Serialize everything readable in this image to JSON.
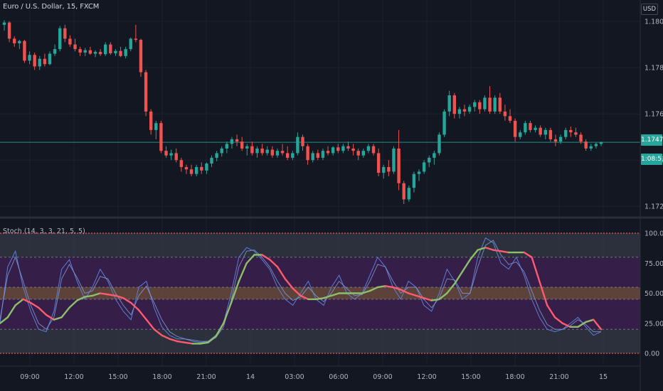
{
  "header": {
    "symbol": "Euro / U.S. Dollar, 15, FXCM",
    "currency": "USD"
  },
  "price_tag": {
    "price": "1.17477",
    "countdown": "1:08:51"
  },
  "indicator": {
    "label": "Stoch (14, 3, 3, 21, 5, 5)"
  },
  "colors": {
    "background": "#131722",
    "up": "#26a69a",
    "down": "#ef5350",
    "pane_zone": "#363a45",
    "pane_mid": "#3a1f4c",
    "pane_band": "#6b4a3e",
    "stoch_fast_k": "#5b7fd8",
    "stoch_fast_d": "#7f96d0",
    "slow_rising": "#8bbf6a",
    "slow_falling": "#ff5a6e",
    "bound_line": "#ef5350"
  },
  "chart_data": [
    {
      "type": "candlestick",
      "title": "Euro / U.S. Dollar, 15, FXCM",
      "y_ticks": [
        "1.18000",
        "1.17800",
        "1.17600",
        "1.17400",
        "1.17200"
      ],
      "x_ticks": [
        "09:00",
        "12:00",
        "15:00",
        "18:00",
        "21:00",
        "14",
        "03:00",
        "06:00",
        "09:00",
        "12:00",
        "15:00",
        "18:00",
        "21:00",
        "15"
      ],
      "ylim": [
        1.1717,
        1.1808
      ],
      "last_price": 1.17477,
      "grid": true,
      "ohlc": [
        [
          1.17985,
          1.18005,
          1.1796,
          1.17995
        ],
        [
          1.17995,
          1.18,
          1.1791,
          1.17925
        ],
        [
          1.17925,
          1.17935,
          1.1789,
          1.17905
        ],
        [
          1.17905,
          1.1792,
          1.1788,
          1.17915
        ],
        [
          1.17915,
          1.1792,
          1.1782,
          1.1783
        ],
        [
          1.1783,
          1.1787,
          1.17815,
          1.17855
        ],
        [
          1.17855,
          1.17865,
          1.1779,
          1.17805
        ],
        [
          1.17805,
          1.1785,
          1.1779,
          1.17838
        ],
        [
          1.17838,
          1.1786,
          1.17805,
          1.17815
        ],
        [
          1.17815,
          1.1787,
          1.1781,
          1.1786
        ],
        [
          1.1786,
          1.179,
          1.1785,
          1.1788
        ],
        [
          1.1788,
          1.1798,
          1.1787,
          1.1797
        ],
        [
          1.1797,
          1.17985,
          1.1791,
          1.17925
        ],
        [
          1.17925,
          1.1794,
          1.1789,
          1.179
        ],
        [
          1.179,
          1.17925,
          1.1787,
          1.1788
        ],
        [
          1.1788,
          1.1789,
          1.1785,
          1.17865
        ],
        [
          1.17865,
          1.17885,
          1.1785,
          1.17875
        ],
        [
          1.17875,
          1.1789,
          1.17855,
          1.1786
        ],
        [
          1.1786,
          1.17875,
          1.17845,
          1.17868
        ],
        [
          1.17868,
          1.1788,
          1.1785,
          1.17858
        ],
        [
          1.17858,
          1.1791,
          1.1785,
          1.179
        ],
        [
          1.179,
          1.1791,
          1.17855,
          1.17862
        ],
        [
          1.17862,
          1.1788,
          1.1785,
          1.17872
        ],
        [
          1.17872,
          1.1789,
          1.17845,
          1.1785
        ],
        [
          1.1785,
          1.1789,
          1.1784,
          1.1788
        ],
        [
          1.1788,
          1.1793,
          1.1787,
          1.17925
        ],
        [
          1.17925,
          1.17985,
          1.1791,
          1.1792
        ],
        [
          1.1792,
          1.17925,
          1.1776,
          1.1778
        ],
        [
          1.1778,
          1.1779,
          1.1759,
          1.1761
        ],
        [
          1.1761,
          1.1762,
          1.1751,
          1.1753
        ],
        [
          1.1753,
          1.1757,
          1.1749,
          1.1756
        ],
        [
          1.1756,
          1.1757,
          1.1743,
          1.1744
        ],
        [
          1.1744,
          1.1746,
          1.1741,
          1.1742
        ],
        [
          1.1742,
          1.17445,
          1.174,
          1.1743
        ],
        [
          1.1743,
          1.1745,
          1.1739,
          1.174
        ],
        [
          1.174,
          1.1741,
          1.1735,
          1.1737
        ],
        [
          1.1737,
          1.1738,
          1.1734,
          1.1736
        ],
        [
          1.1736,
          1.1738,
          1.1733,
          1.1734
        ],
        [
          1.1734,
          1.1738,
          1.1733,
          1.1737
        ],
        [
          1.1737,
          1.1739,
          1.1734,
          1.17355
        ],
        [
          1.17355,
          1.1739,
          1.1734,
          1.17385
        ],
        [
          1.17385,
          1.1742,
          1.1737,
          1.1741
        ],
        [
          1.1741,
          1.1744,
          1.17395,
          1.1743
        ],
        [
          1.1743,
          1.1746,
          1.17415,
          1.1745
        ],
        [
          1.1745,
          1.1748,
          1.1743,
          1.1747
        ],
        [
          1.1747,
          1.175,
          1.1745,
          1.1749
        ],
        [
          1.1749,
          1.1751,
          1.1746,
          1.1748
        ],
        [
          1.1748,
          1.175,
          1.1744,
          1.1745
        ],
        [
          1.1745,
          1.1747,
          1.1742,
          1.1746
        ],
        [
          1.1746,
          1.1748,
          1.1742,
          1.1743
        ],
        [
          1.1743,
          1.1746,
          1.1741,
          1.1745
        ],
        [
          1.1745,
          1.1747,
          1.1742,
          1.1743
        ],
        [
          1.1743,
          1.1746,
          1.1742,
          1.17445
        ],
        [
          1.17445,
          1.1746,
          1.1741,
          1.1742
        ],
        [
          1.1742,
          1.1745,
          1.1741,
          1.1744
        ],
        [
          1.1744,
          1.1747,
          1.1742,
          1.1743
        ],
        [
          1.1743,
          1.1746,
          1.174,
          1.1741
        ],
        [
          1.1741,
          1.1744,
          1.174,
          1.1743
        ],
        [
          1.1743,
          1.1752,
          1.1742,
          1.175
        ],
        [
          1.175,
          1.1751,
          1.1744,
          1.1746
        ],
        [
          1.1746,
          1.1747,
          1.1738,
          1.174
        ],
        [
          1.174,
          1.1744,
          1.1739,
          1.1743
        ],
        [
          1.1743,
          1.17445,
          1.174,
          1.1741
        ],
        [
          1.1741,
          1.1745,
          1.174,
          1.1744
        ],
        [
          1.1744,
          1.1746,
          1.1742,
          1.1743
        ],
        [
          1.1743,
          1.1746,
          1.1742,
          1.17455
        ],
        [
          1.17455,
          1.1747,
          1.1743,
          1.1744
        ],
        [
          1.1744,
          1.1747,
          1.1743,
          1.1746
        ],
        [
          1.1746,
          1.1748,
          1.1744,
          1.1745
        ],
        [
          1.1745,
          1.1747,
          1.1742,
          1.1744
        ],
        [
          1.1744,
          1.1745,
          1.174,
          1.1742
        ],
        [
          1.1742,
          1.1745,
          1.1741,
          1.1744
        ],
        [
          1.1744,
          1.1747,
          1.1743,
          1.1746
        ],
        [
          1.1746,
          1.1747,
          1.1742,
          1.1743
        ],
        [
          1.1743,
          1.1745,
          1.1733,
          1.17345
        ],
        [
          1.17345,
          1.1738,
          1.1732,
          1.1737
        ],
        [
          1.1737,
          1.174,
          1.1733,
          1.1735
        ],
        [
          1.1735,
          1.1746,
          1.1734,
          1.1745
        ],
        [
          1.1745,
          1.1753,
          1.1727,
          1.173
        ],
        [
          1.173,
          1.1731,
          1.1721,
          1.1723
        ],
        [
          1.1723,
          1.1729,
          1.1722,
          1.1728
        ],
        [
          1.1728,
          1.1735,
          1.1726,
          1.1734
        ],
        [
          1.1734,
          1.1736,
          1.1731,
          1.1735
        ],
        [
          1.1735,
          1.174,
          1.1734,
          1.1739
        ],
        [
          1.1739,
          1.1742,
          1.1737,
          1.1741
        ],
        [
          1.1741,
          1.1744,
          1.1738,
          1.1743
        ],
        [
          1.1743,
          1.1752,
          1.1742,
          1.1751
        ],
        [
          1.1751,
          1.1762,
          1.175,
          1.1761
        ],
        [
          1.1761,
          1.177,
          1.1759,
          1.1768
        ],
        [
          1.1768,
          1.1769,
          1.1758,
          1.176
        ],
        [
          1.176,
          1.1763,
          1.1758,
          1.1762
        ],
        [
          1.1762,
          1.1764,
          1.1759,
          1.1761
        ],
        [
          1.1761,
          1.1764,
          1.176,
          1.1763
        ],
        [
          1.1763,
          1.1766,
          1.1761,
          1.1765
        ],
        [
          1.1765,
          1.1766,
          1.176,
          1.1762
        ],
        [
          1.1762,
          1.1768,
          1.1761,
          1.1767
        ],
        [
          1.1767,
          1.1772,
          1.176,
          1.1761
        ],
        [
          1.1761,
          1.1768,
          1.176,
          1.1767
        ],
        [
          1.1767,
          1.1769,
          1.176,
          1.1761
        ],
        [
          1.1761,
          1.1764,
          1.1757,
          1.1759
        ],
        [
          1.1759,
          1.1762,
          1.1756,
          1.1757
        ],
        [
          1.1757,
          1.1758,
          1.1748,
          1.175
        ],
        [
          1.175,
          1.1753,
          1.1749,
          1.1752
        ],
        [
          1.1752,
          1.1757,
          1.1751,
          1.1756
        ],
        [
          1.1756,
          1.1757,
          1.1752,
          1.1753
        ],
        [
          1.1753,
          1.1755,
          1.1752,
          1.1754
        ],
        [
          1.1754,
          1.1755,
          1.175,
          1.1751
        ],
        [
          1.1751,
          1.1754,
          1.1749,
          1.1753
        ],
        [
          1.1753,
          1.1754,
          1.1748,
          1.1749
        ],
        [
          1.1749,
          1.1751,
          1.1746,
          1.1748
        ],
        [
          1.1748,
          1.1751,
          1.1747,
          1.175
        ],
        [
          1.175,
          1.1754,
          1.1749,
          1.1753
        ],
        [
          1.1753,
          1.17545,
          1.175,
          1.1752
        ],
        [
          1.1752,
          1.1754,
          1.175,
          1.1751
        ],
        [
          1.1751,
          1.1752,
          1.1747,
          1.1748
        ],
        [
          1.1748,
          1.1749,
          1.1744,
          1.1745
        ],
        [
          1.1745,
          1.1747,
          1.1744,
          1.1746
        ],
        [
          1.1746,
          1.17475,
          1.1745,
          1.1747
        ],
        [
          1.1747,
          1.1748,
          1.1746,
          1.17477
        ]
      ]
    },
    {
      "type": "line",
      "title": "Stoch (14, 3, 3, 21, 5, 5)",
      "y_ticks": [
        "100.00",
        "75.00",
        "50.00",
        "25.00",
        "0.00"
      ],
      "ylim": [
        0,
        100
      ],
      "bands": {
        "upper": 80,
        "mid_high": 55,
        "mid_low": 45,
        "lower": 20
      },
      "series": [
        {
          "values": [
            25,
            72,
            85,
            55,
            35,
            20,
            18,
            35,
            70,
            78,
            60,
            45,
            55,
            70,
            60,
            45,
            35,
            28,
            55,
            60,
            38,
            22,
            15,
            12,
            12,
            10,
            9,
            10,
            15,
            25,
            50,
            80,
            88,
            85,
            78,
            70,
            55,
            45,
            40,
            50,
            60,
            45,
            40,
            55,
            65,
            50,
            45,
            50,
            65,
            80,
            72,
            55,
            45,
            60,
            55,
            40,
            35,
            50,
            70,
            60,
            45,
            50,
            80,
            96,
            92,
            75,
            70,
            80,
            65,
            45,
            30,
            20,
            18,
            20,
            25,
            30,
            22,
            15,
            18
          ]
        },
        {
          "values": [
            28,
            65,
            80,
            60,
            40,
            25,
            20,
            30,
            62,
            74,
            63,
            50,
            52,
            64,
            62,
            50,
            40,
            32,
            48,
            56,
            42,
            28,
            18,
            14,
            12,
            11,
            10,
            10,
            13,
            22,
            44,
            72,
            85,
            86,
            80,
            72,
            60,
            50,
            44,
            47,
            55,
            48,
            43,
            50,
            60,
            54,
            48,
            49,
            60,
            74,
            72,
            60,
            50,
            55,
            55,
            45,
            38,
            46,
            62,
            61,
            50,
            50,
            72,
            90,
            94,
            82,
            74,
            76,
            68,
            52,
            36,
            24,
            20,
            20,
            23,
            28,
            24,
            18,
            18
          ]
        },
        {
          "values": [
            25,
            30,
            40,
            45,
            42,
            38,
            32,
            28,
            30,
            38,
            44,
            47,
            48,
            50,
            49,
            48,
            46,
            42,
            36,
            28,
            20,
            15,
            12,
            10,
            9,
            8,
            8,
            9,
            14,
            25,
            42,
            60,
            75,
            82,
            82,
            78,
            72,
            62,
            54,
            48,
            45,
            45,
            46,
            48,
            50,
            50,
            50,
            50,
            52,
            55,
            56,
            55,
            53,
            50,
            48,
            46,
            44,
            45,
            50,
            58,
            68,
            78,
            86,
            88,
            86,
            85,
            84,
            84,
            84,
            80,
            60,
            40,
            30,
            25,
            22,
            22,
            26,
            28,
            20
          ]
        }
      ]
    }
  ]
}
